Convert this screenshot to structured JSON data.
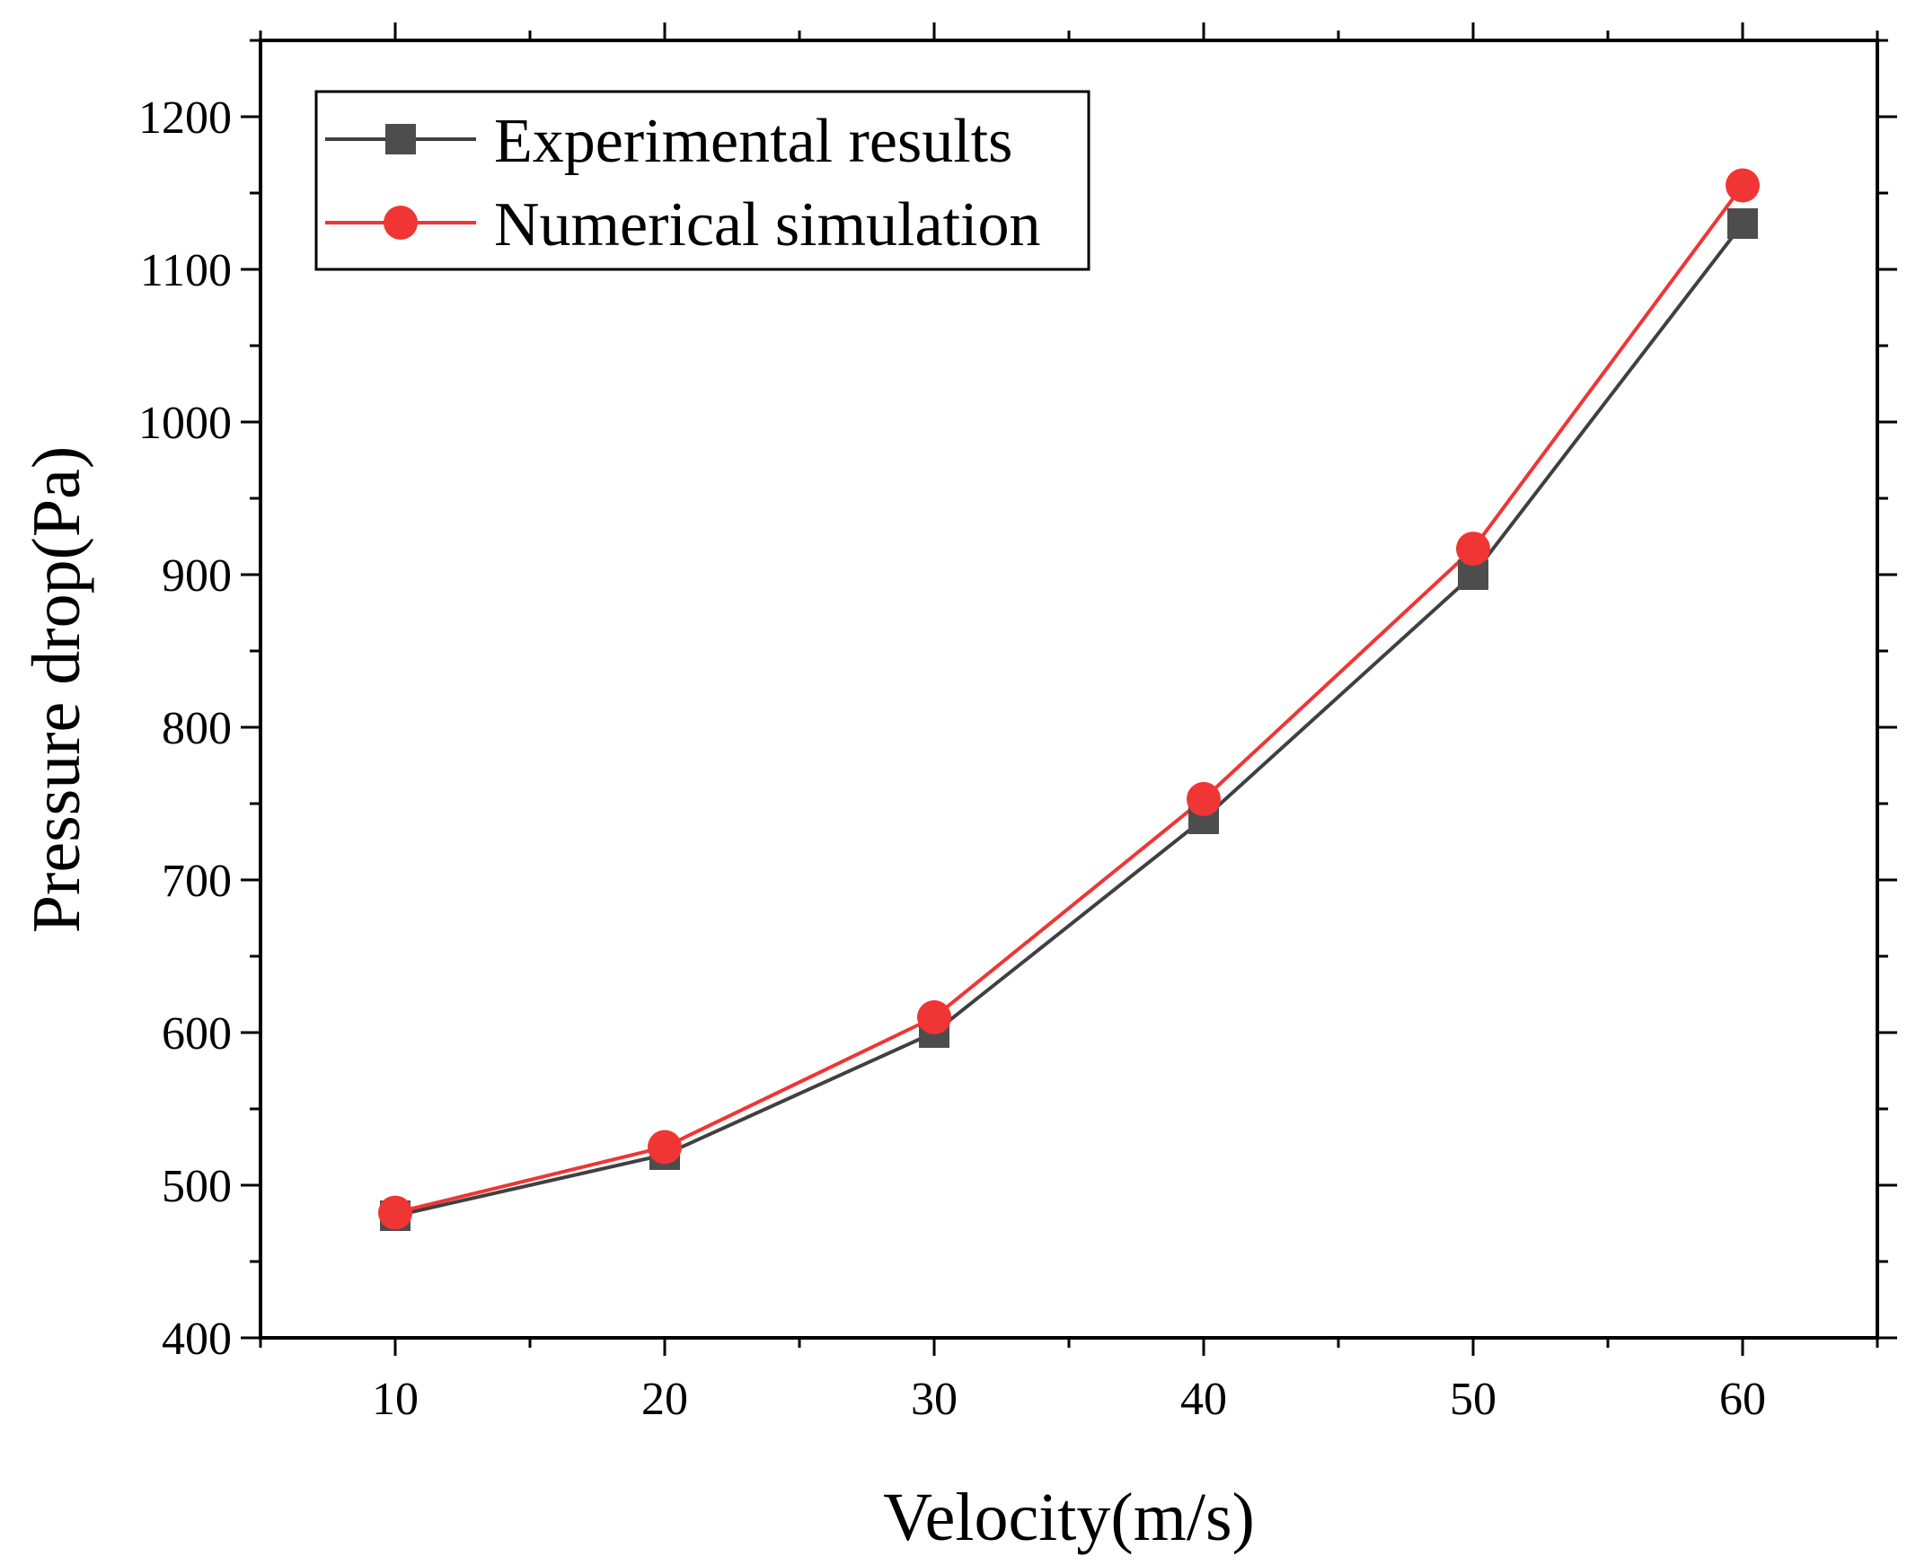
{
  "chart_data": {
    "type": "line",
    "xlabel": "Velocity(m/s)",
    "ylabel": "Pressure drop(Pa)",
    "xlim": [
      5,
      65
    ],
    "ylim": [
      400,
      1250
    ],
    "x_ticks": [
      10,
      20,
      30,
      40,
      50,
      60
    ],
    "y_ticks": [
      400,
      500,
      600,
      700,
      800,
      900,
      1000,
      1100,
      1200
    ],
    "grid": false,
    "legend_position": "top-left",
    "x": [
      10,
      20,
      30,
      40,
      50,
      60
    ],
    "series": [
      {
        "name": "Experimental results",
        "marker": "square",
        "color": "#404040",
        "values": [
          480,
          520,
          600,
          740,
          900,
          1130
        ]
      },
      {
        "name": "Numerical simulation",
        "marker": "circle",
        "color": "#f03535",
        "values": [
          482,
          525,
          610,
          753,
          917,
          1155
        ]
      }
    ]
  }
}
